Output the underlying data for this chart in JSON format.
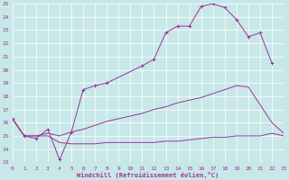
{
  "bg_color": "#c8e8e8",
  "line_color": "#993399",
  "grid_color": "#ffffff",
  "xlabel": "Windchill (Refroidissement éolien,°C)",
  "xlim_min": 0,
  "xlim_max": 23,
  "ylim_min": 13,
  "ylim_max": 25,
  "xticks": [
    0,
    1,
    2,
    3,
    4,
    5,
    6,
    7,
    8,
    9,
    10,
    11,
    12,
    13,
    14,
    15,
    16,
    17,
    18,
    19,
    20,
    21,
    22,
    23
  ],
  "yticks": [
    13,
    14,
    15,
    16,
    17,
    18,
    19,
    20,
    21,
    22,
    23,
    24,
    25
  ],
  "line1_x": [
    0,
    1,
    2,
    3,
    4,
    5,
    6,
    7,
    8,
    11,
    12,
    13,
    14,
    15,
    16,
    17,
    18,
    19,
    20,
    21,
    22
  ],
  "line1_y": [
    16.3,
    15.0,
    14.8,
    15.5,
    13.2,
    15.3,
    18.5,
    18.8,
    19.0,
    20.3,
    20.8,
    22.8,
    23.3,
    23.3,
    24.8,
    25.0,
    24.7,
    23.8,
    22.5,
    22.8,
    20.5
  ],
  "line2_x": [
    0,
    1,
    2,
    3,
    4,
    5,
    6,
    7,
    8,
    9,
    10,
    11,
    12,
    13,
    14,
    15,
    16,
    17,
    18,
    19,
    20,
    22,
    23
  ],
  "line2_y": [
    16.3,
    15.0,
    15.0,
    15.2,
    15.0,
    15.3,
    15.5,
    15.8,
    16.1,
    16.3,
    16.5,
    16.7,
    17.0,
    17.2,
    17.5,
    17.7,
    17.9,
    18.2,
    18.5,
    18.8,
    18.7,
    16.0,
    15.2
  ],
  "line3_x": [
    0,
    1,
    2,
    3,
    4,
    5,
    6,
    7,
    8,
    9,
    10,
    11,
    12,
    13,
    14,
    15,
    16,
    17,
    18,
    19,
    20,
    21,
    22,
    23
  ],
  "line3_y": [
    16.3,
    15.0,
    15.0,
    15.0,
    14.5,
    14.4,
    14.4,
    14.4,
    14.5,
    14.5,
    14.5,
    14.5,
    14.5,
    14.6,
    14.6,
    14.7,
    14.8,
    14.9,
    14.9,
    15.0,
    15.0,
    15.0,
    15.2,
    15.0
  ]
}
